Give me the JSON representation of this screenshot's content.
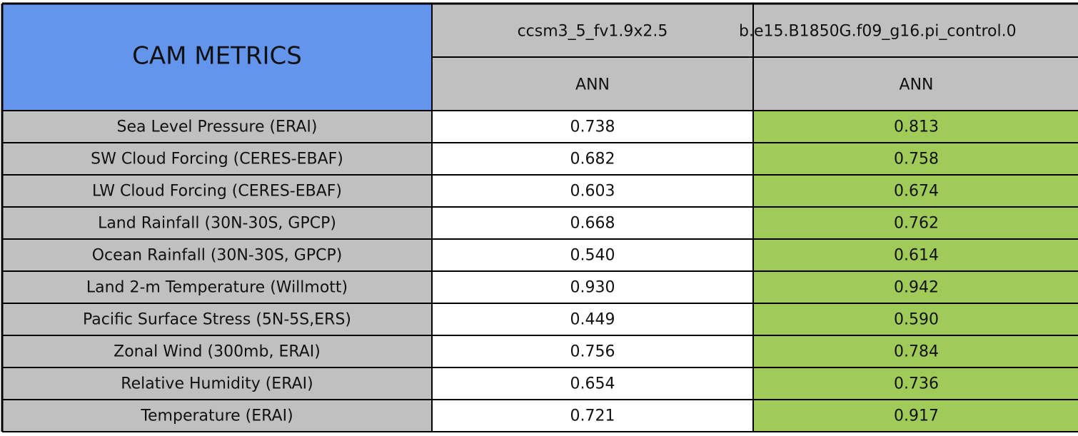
{
  "header": {
    "title": "CAM METRICS",
    "columns": [
      {
        "name": "ccsm3_5_fv1.9x2.5",
        "period": "ANN"
      },
      {
        "name": "b.e15.B1850G.f09_g16.pi_control.0",
        "period": "ANN"
      }
    ]
  },
  "table": {
    "rows": [
      [
        "Sea Level Pressure (ERAI)",
        "0.738",
        "0.813"
      ],
      [
        "SW Cloud Forcing (CERES-EBAF)",
        "0.682",
        "0.758"
      ],
      [
        "LW Cloud Forcing (CERES-EBAF)",
        "0.603",
        "0.674"
      ],
      [
        "Land Rainfall (30N-30S, GPCP)",
        "0.668",
        "0.762"
      ],
      [
        "Ocean Rainfall (30N-30S, GPCP)",
        "0.540",
        "0.614"
      ],
      [
        "Land 2-m Temperature (Willmott)",
        "0.930",
        "0.942"
      ],
      [
        "Pacific Surface Stress (5N-5S,ERS)",
        "0.449",
        "0.590"
      ],
      [
        "Zonal Wind (300mb, ERAI)",
        "0.756",
        "0.784"
      ],
      [
        "Relative Humidity (ERAI)",
        "0.654",
        "0.736"
      ],
      [
        "Temperature (ERAI)",
        "0.721",
        "0.917"
      ]
    ]
  }
}
